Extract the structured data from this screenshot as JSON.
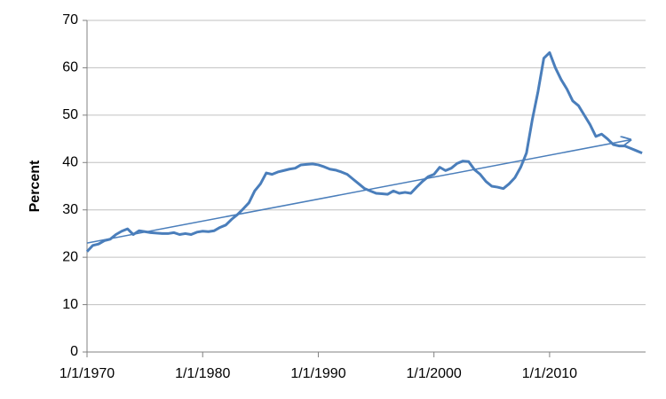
{
  "chart_data": {
    "type": "line",
    "y_label": "Percent",
    "x": [
      1970,
      1970.5,
      1971,
      1971.5,
      1972,
      1972.5,
      1973,
      1973.5,
      1974,
      1974.5,
      1975,
      1975.5,
      1976,
      1976.5,
      1977,
      1977.5,
      1978,
      1978.5,
      1979,
      1979.5,
      1980,
      1980.5,
      1981,
      1981.5,
      1982,
      1982.5,
      1983,
      1983.5,
      1984,
      1984.5,
      1985,
      1985.5,
      1986,
      1986.5,
      1987,
      1987.5,
      1988,
      1988.5,
      1989,
      1989.5,
      1990,
      1990.5,
      1991,
      1991.5,
      1992,
      1992.5,
      1993,
      1993.5,
      1994,
      1994.5,
      1995,
      1995.5,
      1996,
      1996.5,
      1997,
      1997.5,
      1998,
      1998.5,
      1999,
      1999.5,
      2000,
      2000.5,
      2001,
      2001.5,
      2002,
      2002.5,
      2003,
      2003.5,
      2004,
      2004.5,
      2005,
      2005.5,
      2006,
      2006.5,
      2007,
      2007.5,
      2008,
      2008.5,
      2009,
      2009.5,
      2010,
      2010.5,
      2011,
      2011.5,
      2012,
      2012.5,
      2013,
      2013.5,
      2014,
      2014.5,
      2015,
      2015.5,
      2016,
      2016.5,
      2017,
      2017.5,
      2018
    ],
    "series": [
      {
        "color": "#4a7ebb",
        "values": [
          21.2,
          22.5,
          22.8,
          23.5,
          23.8,
          24.8,
          25.5,
          26,
          24.8,
          25.6,
          25.4,
          25.2,
          25.1,
          25,
          25,
          25.2,
          24.8,
          25,
          24.8,
          25.3,
          25.5,
          25.4,
          25.6,
          26.3,
          26.8,
          28,
          29,
          30.2,
          31.5,
          34,
          35.5,
          37.8,
          37.5,
          38,
          38.3,
          38.6,
          38.8,
          39.5,
          39.6,
          39.7,
          39.5,
          39.1,
          38.6,
          38.4,
          38,
          37.5,
          36.5,
          35.5,
          34.5,
          34,
          33.5,
          33.4,
          33.3,
          34,
          33.5,
          33.7,
          33.5,
          34.8,
          36,
          37,
          37.5,
          39,
          38.3,
          38.8,
          39.8,
          40.3,
          40.2,
          38.5,
          37.5,
          36,
          35,
          34.8,
          34.5,
          35.5,
          36.8,
          39,
          42,
          49,
          55,
          62,
          63.2,
          60,
          57.5,
          55.5,
          53,
          52,
          50,
          48,
          45.5,
          46,
          45,
          43.8,
          43.5,
          43.5,
          43,
          42.5,
          42
        ]
      }
    ],
    "trendline": {
      "color": "#4a7ebb",
      "x": [
        1970,
        2017
      ],
      "values": [
        23,
        44.8
      ]
    },
    "xlim": [
      1970,
      2018.3
    ],
    "xticks": [
      {
        "value": 1970,
        "label": "1/1/1970"
      },
      {
        "value": 1980,
        "label": "1/1/1980"
      },
      {
        "value": 1990,
        "label": "1/1/1990"
      },
      {
        "value": 2000,
        "label": "1/1/2000"
      },
      {
        "value": 2010,
        "label": "1/1/2010"
      }
    ],
    "ylim": [
      0,
      70
    ],
    "yticks": [
      0,
      10,
      20,
      30,
      40,
      50,
      60,
      70
    ],
    "grid": true
  }
}
